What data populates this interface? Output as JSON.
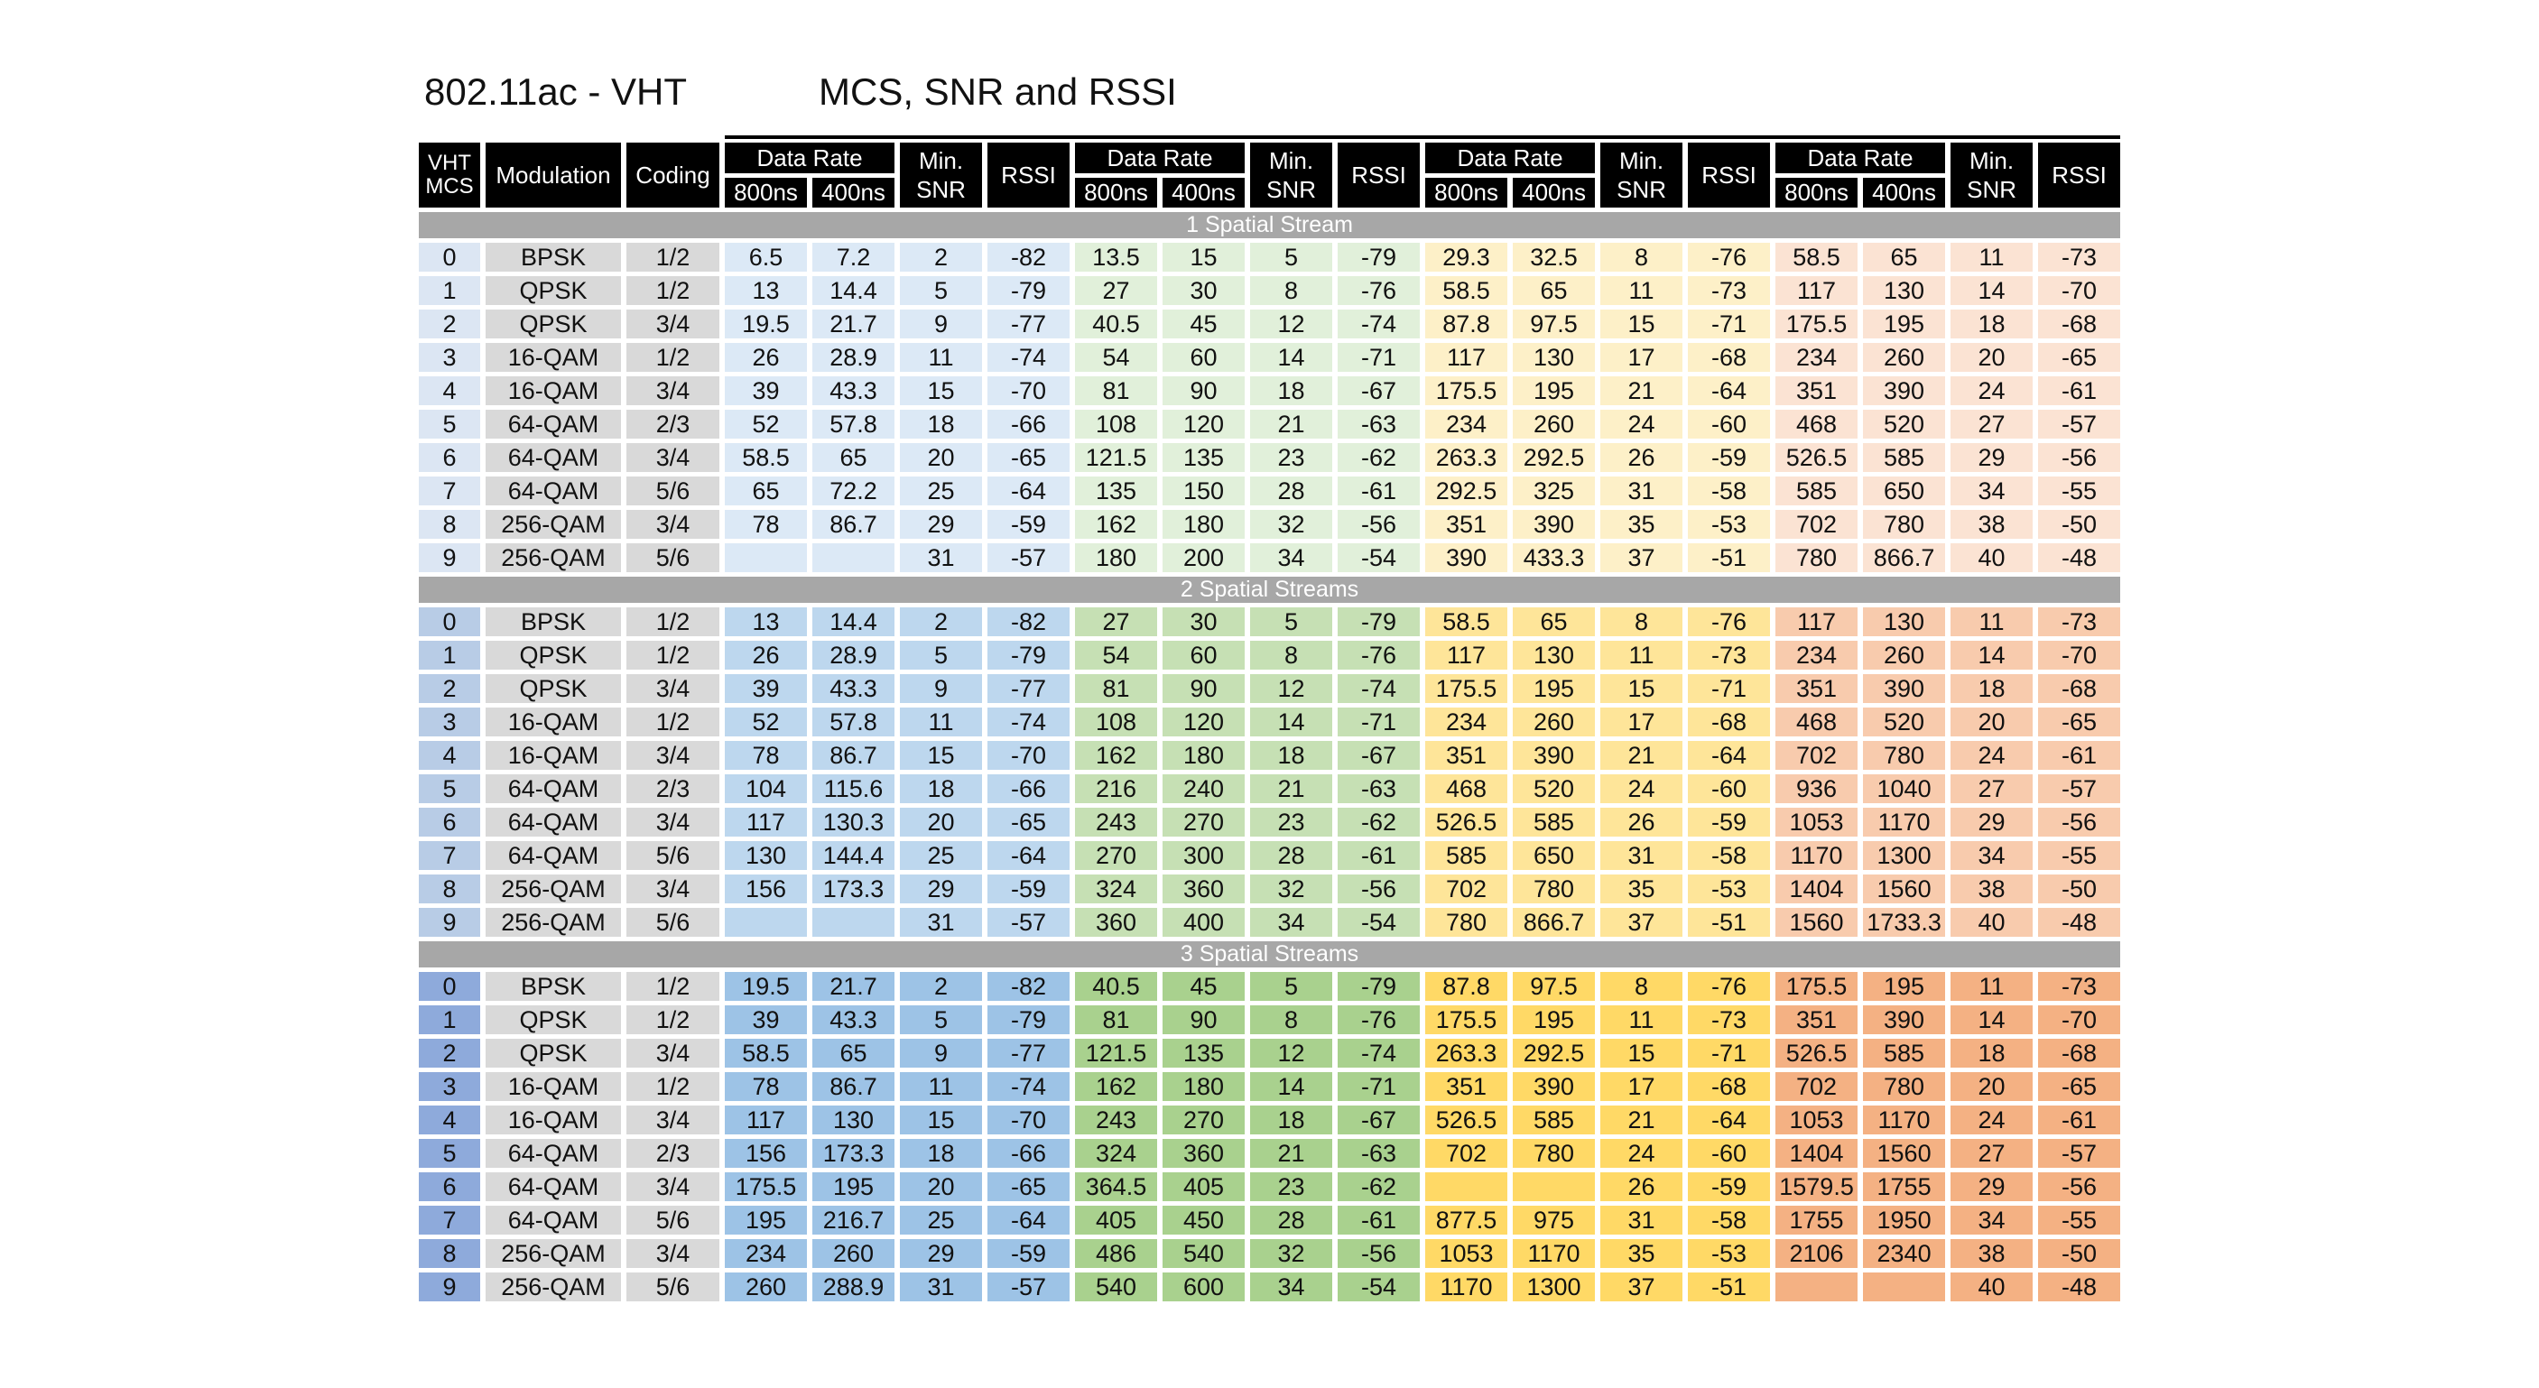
{
  "title_left": "802.11ac - VHT",
  "title_right": "MCS, SNR and RSSI",
  "headers": {
    "mcs": "VHT MCS",
    "modulation": "Modulation",
    "coding": "Coding",
    "data_rate": "Data Rate",
    "gi_800": "800ns",
    "gi_400": "400ns",
    "min_snr": "Min. SNR",
    "rssi": "RSSI"
  },
  "colors": {
    "s1": {
      "mcs": "#dce6f3",
      "bw": [
        "#dce9f6",
        "#e1f0da",
        "#fdf0c8",
        "#fbe3d3"
      ]
    },
    "s2": {
      "mcs": "#b8cce6",
      "bw": [
        "#bdd7ee",
        "#c6e0b4",
        "#fee599",
        "#f8cbad"
      ]
    },
    "s3": {
      "mcs": "#8eaadb",
      "bw": [
        "#9dc3e6",
        "#a9d18e",
        "#ffd966",
        "#f4b183"
      ]
    }
  },
  "sections": [
    {
      "label": "1 Spatial Stream",
      "rows": [
        {
          "mcs": "0",
          "mod": "BPSK",
          "cod": "1/2",
          "g": [
            [
              "6.5",
              "7.2",
              "2",
              "-82"
            ],
            [
              "13.5",
              "15",
              "5",
              "-79"
            ],
            [
              "29.3",
              "32.5",
              "8",
              "-76"
            ],
            [
              "58.5",
              "65",
              "11",
              "-73"
            ]
          ]
        },
        {
          "mcs": "1",
          "mod": "QPSK",
          "cod": "1/2",
          "g": [
            [
              "13",
              "14.4",
              "5",
              "-79"
            ],
            [
              "27",
              "30",
              "8",
              "-76"
            ],
            [
              "58.5",
              "65",
              "11",
              "-73"
            ],
            [
              "117",
              "130",
              "14",
              "-70"
            ]
          ]
        },
        {
          "mcs": "2",
          "mod": "QPSK",
          "cod": "3/4",
          "g": [
            [
              "19.5",
              "21.7",
              "9",
              "-77"
            ],
            [
              "40.5",
              "45",
              "12",
              "-74"
            ],
            [
              "87.8",
              "97.5",
              "15",
              "-71"
            ],
            [
              "175.5",
              "195",
              "18",
              "-68"
            ]
          ]
        },
        {
          "mcs": "3",
          "mod": "16-QAM",
          "cod": "1/2",
          "g": [
            [
              "26",
              "28.9",
              "11",
              "-74"
            ],
            [
              "54",
              "60",
              "14",
              "-71"
            ],
            [
              "117",
              "130",
              "17",
              "-68"
            ],
            [
              "234",
              "260",
              "20",
              "-65"
            ]
          ]
        },
        {
          "mcs": "4",
          "mod": "16-QAM",
          "cod": "3/4",
          "g": [
            [
              "39",
              "43.3",
              "15",
              "-70"
            ],
            [
              "81",
              "90",
              "18",
              "-67"
            ],
            [
              "175.5",
              "195",
              "21",
              "-64"
            ],
            [
              "351",
              "390",
              "24",
              "-61"
            ]
          ]
        },
        {
          "mcs": "5",
          "mod": "64-QAM",
          "cod": "2/3",
          "g": [
            [
              "52",
              "57.8",
              "18",
              "-66"
            ],
            [
              "108",
              "120",
              "21",
              "-63"
            ],
            [
              "234",
              "260",
              "24",
              "-60"
            ],
            [
              "468",
              "520",
              "27",
              "-57"
            ]
          ]
        },
        {
          "mcs": "6",
          "mod": "64-QAM",
          "cod": "3/4",
          "g": [
            [
              "58.5",
              "65",
              "20",
              "-65"
            ],
            [
              "121.5",
              "135",
              "23",
              "-62"
            ],
            [
              "263.3",
              "292.5",
              "26",
              "-59"
            ],
            [
              "526.5",
              "585",
              "29",
              "-56"
            ]
          ]
        },
        {
          "mcs": "7",
          "mod": "64-QAM",
          "cod": "5/6",
          "g": [
            [
              "65",
              "72.2",
              "25",
              "-64"
            ],
            [
              "135",
              "150",
              "28",
              "-61"
            ],
            [
              "292.5",
              "325",
              "31",
              "-58"
            ],
            [
              "585",
              "650",
              "34",
              "-55"
            ]
          ]
        },
        {
          "mcs": "8",
          "mod": "256-QAM",
          "cod": "3/4",
          "g": [
            [
              "78",
              "86.7",
              "29",
              "-59"
            ],
            [
              "162",
              "180",
              "32",
              "-56"
            ],
            [
              "351",
              "390",
              "35",
              "-53"
            ],
            [
              "702",
              "780",
              "38",
              "-50"
            ]
          ]
        },
        {
          "mcs": "9",
          "mod": "256-QAM",
          "cod": "5/6",
          "g": [
            [
              "",
              "",
              "31",
              "-57"
            ],
            [
              "180",
              "200",
              "34",
              "-54"
            ],
            [
              "390",
              "433.3",
              "37",
              "-51"
            ],
            [
              "780",
              "866.7",
              "40",
              "-48"
            ]
          ]
        }
      ]
    },
    {
      "label": "2 Spatial Streams",
      "rows": [
        {
          "mcs": "0",
          "mod": "BPSK",
          "cod": "1/2",
          "g": [
            [
              "13",
              "14.4",
              "2",
              "-82"
            ],
            [
              "27",
              "30",
              "5",
              "-79"
            ],
            [
              "58.5",
              "65",
              "8",
              "-76"
            ],
            [
              "117",
              "130",
              "11",
              "-73"
            ]
          ]
        },
        {
          "mcs": "1",
          "mod": "QPSK",
          "cod": "1/2",
          "g": [
            [
              "26",
              "28.9",
              "5",
              "-79"
            ],
            [
              "54",
              "60",
              "8",
              "-76"
            ],
            [
              "117",
              "130",
              "11",
              "-73"
            ],
            [
              "234",
              "260",
              "14",
              "-70"
            ]
          ]
        },
        {
          "mcs": "2",
          "mod": "QPSK",
          "cod": "3/4",
          "g": [
            [
              "39",
              "43.3",
              "9",
              "-77"
            ],
            [
              "81",
              "90",
              "12",
              "-74"
            ],
            [
              "175.5",
              "195",
              "15",
              "-71"
            ],
            [
              "351",
              "390",
              "18",
              "-68"
            ]
          ]
        },
        {
          "mcs": "3",
          "mod": "16-QAM",
          "cod": "1/2",
          "g": [
            [
              "52",
              "57.8",
              "11",
              "-74"
            ],
            [
              "108",
              "120",
              "14",
              "-71"
            ],
            [
              "234",
              "260",
              "17",
              "-68"
            ],
            [
              "468",
              "520",
              "20",
              "-65"
            ]
          ]
        },
        {
          "mcs": "4",
          "mod": "16-QAM",
          "cod": "3/4",
          "g": [
            [
              "78",
              "86.7",
              "15",
              "-70"
            ],
            [
              "162",
              "180",
              "18",
              "-67"
            ],
            [
              "351",
              "390",
              "21",
              "-64"
            ],
            [
              "702",
              "780",
              "24",
              "-61"
            ]
          ]
        },
        {
          "mcs": "5",
          "mod": "64-QAM",
          "cod": "2/3",
          "g": [
            [
              "104",
              "115.6",
              "18",
              "-66"
            ],
            [
              "216",
              "240",
              "21",
              "-63"
            ],
            [
              "468",
              "520",
              "24",
              "-60"
            ],
            [
              "936",
              "1040",
              "27",
              "-57"
            ]
          ]
        },
        {
          "mcs": "6",
          "mod": "64-QAM",
          "cod": "3/4",
          "g": [
            [
              "117",
              "130.3",
              "20",
              "-65"
            ],
            [
              "243",
              "270",
              "23",
              "-62"
            ],
            [
              "526.5",
              "585",
              "26",
              "-59"
            ],
            [
              "1053",
              "1170",
              "29",
              "-56"
            ]
          ]
        },
        {
          "mcs": "7",
          "mod": "64-QAM",
          "cod": "5/6",
          "g": [
            [
              "130",
              "144.4",
              "25",
              "-64"
            ],
            [
              "270",
              "300",
              "28",
              "-61"
            ],
            [
              "585",
              "650",
              "31",
              "-58"
            ],
            [
              "1170",
              "1300",
              "34",
              "-55"
            ]
          ]
        },
        {
          "mcs": "8",
          "mod": "256-QAM",
          "cod": "3/4",
          "g": [
            [
              "156",
              "173.3",
              "29",
              "-59"
            ],
            [
              "324",
              "360",
              "32",
              "-56"
            ],
            [
              "702",
              "780",
              "35",
              "-53"
            ],
            [
              "1404",
              "1560",
              "38",
              "-50"
            ]
          ]
        },
        {
          "mcs": "9",
          "mod": "256-QAM",
          "cod": "5/6",
          "g": [
            [
              "",
              "",
              "31",
              "-57"
            ],
            [
              "360",
              "400",
              "34",
              "-54"
            ],
            [
              "780",
              "866.7",
              "37",
              "-51"
            ],
            [
              "1560",
              "1733.3",
              "40",
              "-48"
            ]
          ]
        }
      ]
    },
    {
      "label": "3 Spatial Streams",
      "rows": [
        {
          "mcs": "0",
          "mod": "BPSK",
          "cod": "1/2",
          "g": [
            [
              "19.5",
              "21.7",
              "2",
              "-82"
            ],
            [
              "40.5",
              "45",
              "5",
              "-79"
            ],
            [
              "87.8",
              "97.5",
              "8",
              "-76"
            ],
            [
              "175.5",
              "195",
              "11",
              "-73"
            ]
          ]
        },
        {
          "mcs": "1",
          "mod": "QPSK",
          "cod": "1/2",
          "g": [
            [
              "39",
              "43.3",
              "5",
              "-79"
            ],
            [
              "81",
              "90",
              "8",
              "-76"
            ],
            [
              "175.5",
              "195",
              "11",
              "-73"
            ],
            [
              "351",
              "390",
              "14",
              "-70"
            ]
          ]
        },
        {
          "mcs": "2",
          "mod": "QPSK",
          "cod": "3/4",
          "g": [
            [
              "58.5",
              "65",
              "9",
              "-77"
            ],
            [
              "121.5",
              "135",
              "12",
              "-74"
            ],
            [
              "263.3",
              "292.5",
              "15",
              "-71"
            ],
            [
              "526.5",
              "585",
              "18",
              "-68"
            ]
          ]
        },
        {
          "mcs": "3",
          "mod": "16-QAM",
          "cod": "1/2",
          "g": [
            [
              "78",
              "86.7",
              "11",
              "-74"
            ],
            [
              "162",
              "180",
              "14",
              "-71"
            ],
            [
              "351",
              "390",
              "17",
              "-68"
            ],
            [
              "702",
              "780",
              "20",
              "-65"
            ]
          ]
        },
        {
          "mcs": "4",
          "mod": "16-QAM",
          "cod": "3/4",
          "g": [
            [
              "117",
              "130",
              "15",
              "-70"
            ],
            [
              "243",
              "270",
              "18",
              "-67"
            ],
            [
              "526.5",
              "585",
              "21",
              "-64"
            ],
            [
              "1053",
              "1170",
              "24",
              "-61"
            ]
          ]
        },
        {
          "mcs": "5",
          "mod": "64-QAM",
          "cod": "2/3",
          "g": [
            [
              "156",
              "173.3",
              "18",
              "-66"
            ],
            [
              "324",
              "360",
              "21",
              "-63"
            ],
            [
              "702",
              "780",
              "24",
              "-60"
            ],
            [
              "1404",
              "1560",
              "27",
              "-57"
            ]
          ]
        },
        {
          "mcs": "6",
          "mod": "64-QAM",
          "cod": "3/4",
          "g": [
            [
              "175.5",
              "195",
              "20",
              "-65"
            ],
            [
              "364.5",
              "405",
              "23",
              "-62"
            ],
            [
              "",
              "",
              "26",
              "-59"
            ],
            [
              "1579.5",
              "1755",
              "29",
              "-56"
            ]
          ]
        },
        {
          "mcs": "7",
          "mod": "64-QAM",
          "cod": "5/6",
          "g": [
            [
              "195",
              "216.7",
              "25",
              "-64"
            ],
            [
              "405",
              "450",
              "28",
              "-61"
            ],
            [
              "877.5",
              "975",
              "31",
              "-58"
            ],
            [
              "1755",
              "1950",
              "34",
              "-55"
            ]
          ]
        },
        {
          "mcs": "8",
          "mod": "256-QAM",
          "cod": "3/4",
          "g": [
            [
              "234",
              "260",
              "29",
              "-59"
            ],
            [
              "486",
              "540",
              "32",
              "-56"
            ],
            [
              "1053",
              "1170",
              "35",
              "-53"
            ],
            [
              "2106",
              "2340",
              "38",
              "-50"
            ]
          ]
        },
        {
          "mcs": "9",
          "mod": "256-QAM",
          "cod": "5/6",
          "g": [
            [
              "260",
              "288.9",
              "31",
              "-57"
            ],
            [
              "540",
              "600",
              "34",
              "-54"
            ],
            [
              "1170",
              "1300",
              "37",
              "-51"
            ],
            [
              "",
              "",
              "40",
              "-48"
            ]
          ]
        }
      ]
    }
  ]
}
